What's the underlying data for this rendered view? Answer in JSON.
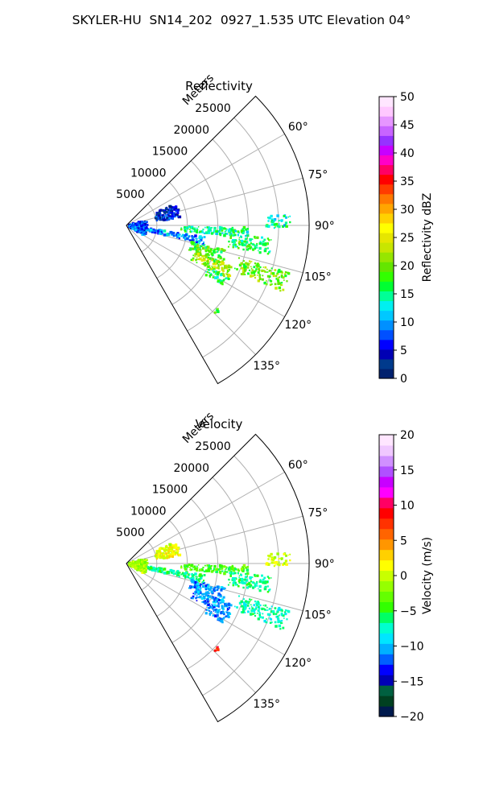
{
  "figure_title": "SKYLER-HU  SN14_202  0927_1.535 UTC Elevation 04°",
  "colors": {
    "reflectivity": [
      "#00206e",
      "#003a8c",
      "#0000b4",
      "#0000ff",
      "#0050ff",
      "#0090ff",
      "#00c8ff",
      "#00f0f0",
      "#00ff96",
      "#00ff32",
      "#32ff00",
      "#64e600",
      "#96e600",
      "#c8e600",
      "#e6e600",
      "#ffff00",
      "#ffd200",
      "#ffa500",
      "#ff7800",
      "#ff3c00",
      "#ff0000",
      "#ff0064",
      "#ff00c8",
      "#c800ff",
      "#9632ff",
      "#c864ff",
      "#e696ff",
      "#ffc8ff",
      "#ffe6ff"
    ],
    "velocity": [
      "#001a4d",
      "#004020",
      "#006040",
      "#0000b4",
      "#0000ff",
      "#0060ff",
      "#00b0ff",
      "#00e6ff",
      "#00ffd0",
      "#00ff64",
      "#32ff00",
      "#64ff00",
      "#96ff00",
      "#c8ff00",
      "#ffff00",
      "#ffd000",
      "#ff9600",
      "#ff6400",
      "#ff3200",
      "#ff0000",
      "#ff0064",
      "#ff00ff",
      "#c800ff",
      "#b050ff",
      "#d090ff",
      "#f0c8ff",
      "#ffe6ff"
    ]
  },
  "chart_data": [
    {
      "type": "heatmap",
      "projection": "polar-sector",
      "title": "Reflectivity",
      "range_label": "Meters",
      "range_ticks": [
        5000,
        10000,
        15000,
        20000,
        25000
      ],
      "range_tick_labels": [
        "5000",
        "10000",
        "15000",
        "20000",
        "25000"
      ],
      "rmax": 30000,
      "angle_range_deg": [
        45,
        150
      ],
      "angle_ticks": [
        60,
        75,
        90,
        105,
        120,
        135
      ],
      "angle_tick_labels": [
        "60°",
        "75°",
        "90°",
        "105°",
        "120°",
        "135°"
      ],
      "colorbar": {
        "label": "Reflectivity dBZ",
        "min": 0,
        "max": 50,
        "ticks": [
          0,
          5,
          10,
          15,
          20,
          25,
          30,
          35,
          40,
          45,
          50
        ],
        "tick_labels": [
          "0",
          "5",
          "10",
          "15",
          "20",
          "25",
          "30",
          "35",
          "40",
          "45",
          "50"
        ]
      },
      "echo_regions": [
        {
          "r": [
            3000,
            13000
          ],
          "az": [
            98,
            104
          ],
          "value": 10
        },
        {
          "r": [
            9000,
            20000
          ],
          "az": [
            91,
            96
          ],
          "value": 15
        },
        {
          "r": [
            17000,
            24000
          ],
          "az": [
            95,
            102
          ],
          "value": 17
        },
        {
          "r": [
            11000,
            17000
          ],
          "az": [
            104,
            112
          ],
          "value": 18
        },
        {
          "r": [
            12000,
            19000
          ],
          "az": [
            111,
            118
          ],
          "value": 22
        },
        {
          "r": [
            15000,
            19000
          ],
          "az": [
            117,
            122
          ],
          "value": 16
        },
        {
          "r": [
            19000,
            28000
          ],
          "az": [
            106,
            113
          ],
          "value": 20
        },
        {
          "r": [
            23000,
            27000
          ],
          "az": [
            86,
            91
          ],
          "value": 14
        },
        {
          "r": [
            5000,
            9000
          ],
          "az": [
            66,
            82
          ],
          "value": 5
        },
        {
          "r": [
            20000,
            21000
          ],
          "az": [
            132,
            135
          ],
          "value": 18
        },
        {
          "r": [
            500,
            3500
          ],
          "az": [
            75,
            120
          ],
          "value": 8
        }
      ]
    },
    {
      "type": "heatmap",
      "projection": "polar-sector",
      "title": "Velocity",
      "range_label": "Meters",
      "range_ticks": [
        5000,
        10000,
        15000,
        20000,
        25000
      ],
      "range_tick_labels": [
        "5000",
        "10000",
        "15000",
        "20000",
        "25000"
      ],
      "rmax": 30000,
      "angle_range_deg": [
        45,
        150
      ],
      "angle_ticks": [
        60,
        75,
        90,
        105,
        120,
        135
      ],
      "angle_tick_labels": [
        "60°",
        "75°",
        "90°",
        "105°",
        "120°",
        "135°"
      ],
      "colorbar": {
        "label": "Velocity (m/s)",
        "min": -20,
        "max": 20,
        "ticks": [
          -20,
          -15,
          -10,
          -5,
          0,
          5,
          10,
          15,
          20
        ],
        "tick_labels": [
          "−20",
          "−15",
          "−10",
          "−5",
          "0",
          "5",
          "10",
          "15",
          "20"
        ]
      },
      "echo_regions": [
        {
          "r": [
            3000,
            13000
          ],
          "az": [
            98,
            104
          ],
          "value": -6
        },
        {
          "r": [
            9000,
            20000
          ],
          "az": [
            91,
            96
          ],
          "value": -4
        },
        {
          "r": [
            17000,
            24000
          ],
          "az": [
            95,
            102
          ],
          "value": -6
        },
        {
          "r": [
            11000,
            17000
          ],
          "az": [
            104,
            112
          ],
          "value": -11
        },
        {
          "r": [
            12000,
            19000
          ],
          "az": [
            111,
            118
          ],
          "value": -11
        },
        {
          "r": [
            15000,
            19000
          ],
          "az": [
            117,
            122
          ],
          "value": -11
        },
        {
          "r": [
            19000,
            28000
          ],
          "az": [
            106,
            113
          ],
          "value": -7
        },
        {
          "r": [
            23000,
            27000
          ],
          "az": [
            86,
            91
          ],
          "value": 0
        },
        {
          "r": [
            5000,
            9000
          ],
          "az": [
            66,
            82
          ],
          "value": 1
        },
        {
          "r": [
            20000,
            21000
          ],
          "az": [
            132,
            135
          ],
          "value": 8
        },
        {
          "r": [
            500,
            3500
          ],
          "az": [
            75,
            120
          ],
          "value": -1
        }
      ]
    }
  ]
}
